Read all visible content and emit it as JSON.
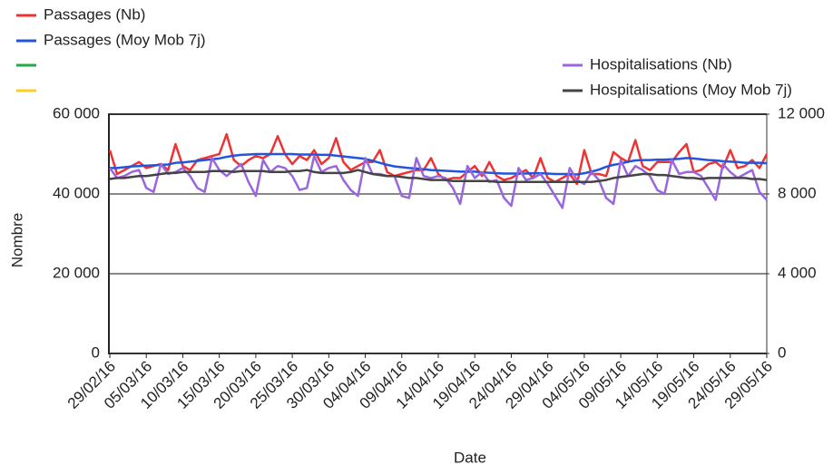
{
  "chart_data": {
    "type": "line",
    "y_label": "Nombre",
    "x_label": "Date",
    "categories": [
      "29/02/16",
      null,
      null,
      null,
      null,
      "05/03/16",
      null,
      null,
      null,
      null,
      "10/03/16",
      null,
      null,
      null,
      null,
      "15/03/16",
      null,
      null,
      null,
      null,
      "20/03/16",
      null,
      null,
      null,
      null,
      "25/03/16",
      null,
      null,
      null,
      null,
      "30/03/16",
      null,
      null,
      null,
      null,
      "04/04/16",
      null,
      null,
      null,
      null,
      "09/04/16",
      null,
      null,
      null,
      null,
      "14/04/16",
      null,
      null,
      null,
      null,
      "19/04/16",
      null,
      null,
      null,
      null,
      "24/04/16",
      null,
      null,
      null,
      null,
      "29/04/16",
      null,
      null,
      null,
      null,
      "04/05/16",
      null,
      null,
      null,
      null,
      "09/05/16",
      null,
      null,
      null,
      null,
      "14/05/16",
      null,
      null,
      null,
      null,
      "19/05/16",
      null,
      null,
      null,
      null,
      "24/05/16",
      null,
      null,
      null,
      null,
      "29/05/16"
    ],
    "ylim": [
      0,
      60000
    ],
    "yticks": [
      0,
      {
        "value": 20000,
        "label": "20 000"
      },
      {
        "value": 40000,
        "label": "40 000"
      },
      {
        "value": 60000,
        "label": "60 000"
      }
    ],
    "y2lim": [
      0,
      12000
    ],
    "y2ticks": [
      0,
      {
        "value": 4000,
        "label": "4 000"
      },
      {
        "value": 8000,
        "label": "8 000"
      },
      {
        "value": 12000,
        "label": "12 000"
      }
    ],
    "grid": true,
    "series": [
      {
        "name": "Passages (Nb)",
        "color": "#ee3333",
        "values": [
          51000,
          45000,
          46000,
          47000,
          48000,
          46500,
          47000,
          47500,
          46000,
          52500,
          47000,
          46000,
          48500,
          49000,
          49500,
          50000,
          55000,
          48500,
          47000,
          48500,
          49500,
          49000,
          50000,
          54500,
          50000,
          47500,
          49500,
          48500,
          51000,
          47500,
          49000,
          54000,
          48000,
          46000,
          47000,
          48000,
          48000,
          51000,
          45500,
          44500,
          45000,
          45500,
          46000,
          46000,
          49000,
          45000,
          43500,
          44000,
          44000,
          45500,
          47000,
          44500,
          48000,
          44500,
          43500,
          44000,
          45000,
          46000,
          44000,
          49000,
          44000,
          43000,
          44000,
          45000,
          42500,
          51000,
          45000,
          45000,
          44500,
          50500,
          49000,
          48000,
          53500,
          47000,
          46000,
          48000,
          48000,
          48000,
          50500,
          52500,
          45500,
          46000,
          47500,
          48000,
          46500,
          51000,
          46500,
          47000,
          48500,
          46500,
          50000
        ]
      },
      {
        "name": "Passages (Moy Mob 7j)",
        "color": "#2255dd",
        "values": [
          46500,
          46500,
          46700,
          46900,
          47000,
          47100,
          47200,
          47300,
          47400,
          47800,
          47900,
          48100,
          48300,
          48500,
          48700,
          48900,
          49300,
          49600,
          49800,
          49900,
          50000,
          50000,
          50000,
          50000,
          50000,
          50000,
          49900,
          49900,
          49900,
          49800,
          49800,
          49600,
          49400,
          49200,
          49000,
          48800,
          48300,
          47800,
          47300,
          46900,
          46700,
          46500,
          46400,
          46200,
          46000,
          45900,
          45800,
          45700,
          45600,
          45600,
          45600,
          45400,
          45300,
          45200,
          45100,
          45100,
          45100,
          45100,
          45200,
          45200,
          45100,
          45000,
          45000,
          45000,
          44900,
          45200,
          45600,
          46100,
          46800,
          47300,
          47600,
          48100,
          48400,
          48500,
          48500,
          48600,
          48600,
          48700,
          48800,
          49000,
          48900,
          48700,
          48500,
          48400,
          48200,
          48100,
          48000,
          47800,
          47800,
          47800,
          47700
        ]
      },
      {
        "name": "Hospitalisations (Nb)",
        "color": "#9966dd",
        "axis": "y2",
        "values": [
          9300,
          8800,
          8900,
          9100,
          9200,
          8300,
          8100,
          9500,
          9000,
          9100,
          9300,
          8900,
          8300,
          8100,
          9800,
          9200,
          8900,
          9200,
          9500,
          8600,
          7900,
          9700,
          9100,
          9400,
          9300,
          8900,
          8200,
          8300,
          9900,
          9100,
          9300,
          9400,
          8700,
          8200,
          7900,
          9800,
          9000,
          9000,
          8900,
          8900,
          7900,
          7800,
          9800,
          8900,
          8800,
          8900,
          8800,
          8300,
          7500,
          9400,
          8800,
          9100,
          8600,
          8700,
          7800,
          7400,
          9300,
          8700,
          8800,
          9000,
          8500,
          7900,
          7300,
          9300,
          8700,
          8500,
          9100,
          8700,
          7800,
          7500,
          9700,
          8900,
          9400,
          9200,
          8900,
          8200,
          8000,
          9700,
          9000,
          9100,
          9100,
          8900,
          8300,
          7700,
          9500,
          9100,
          8800,
          9000,
          9200,
          8100,
          7700
        ]
      },
      {
        "name": "Hospitalisations (Moy Mob 7j)",
        "color": "#444444",
        "axis": "y2",
        "values": [
          8750,
          8800,
          8800,
          8850,
          8900,
          8900,
          8950,
          9000,
          9050,
          9050,
          9100,
          9100,
          9100,
          9100,
          9150,
          9150,
          9150,
          9100,
          9150,
          9150,
          9150,
          9150,
          9100,
          9100,
          9100,
          9150,
          9150,
          9200,
          9100,
          9050,
          9050,
          9050,
          9050,
          9100,
          9200,
          9100,
          9000,
          8950,
          8900,
          8900,
          8850,
          8800,
          8800,
          8750,
          8700,
          8700,
          8700,
          8650,
          8650,
          8650,
          8650,
          8650,
          8650,
          8600,
          8600,
          8600,
          8600,
          8600,
          8600,
          8600,
          8600,
          8600,
          8600,
          8600,
          8600,
          8600,
          8600,
          8650,
          8700,
          8800,
          8850,
          8900,
          8950,
          9000,
          9000,
          8950,
          8950,
          8900,
          8850,
          8800,
          8800,
          8750,
          8800,
          8800,
          8800,
          8800,
          8800,
          8800,
          8750,
          8750,
          8700
        ]
      }
    ]
  }
}
